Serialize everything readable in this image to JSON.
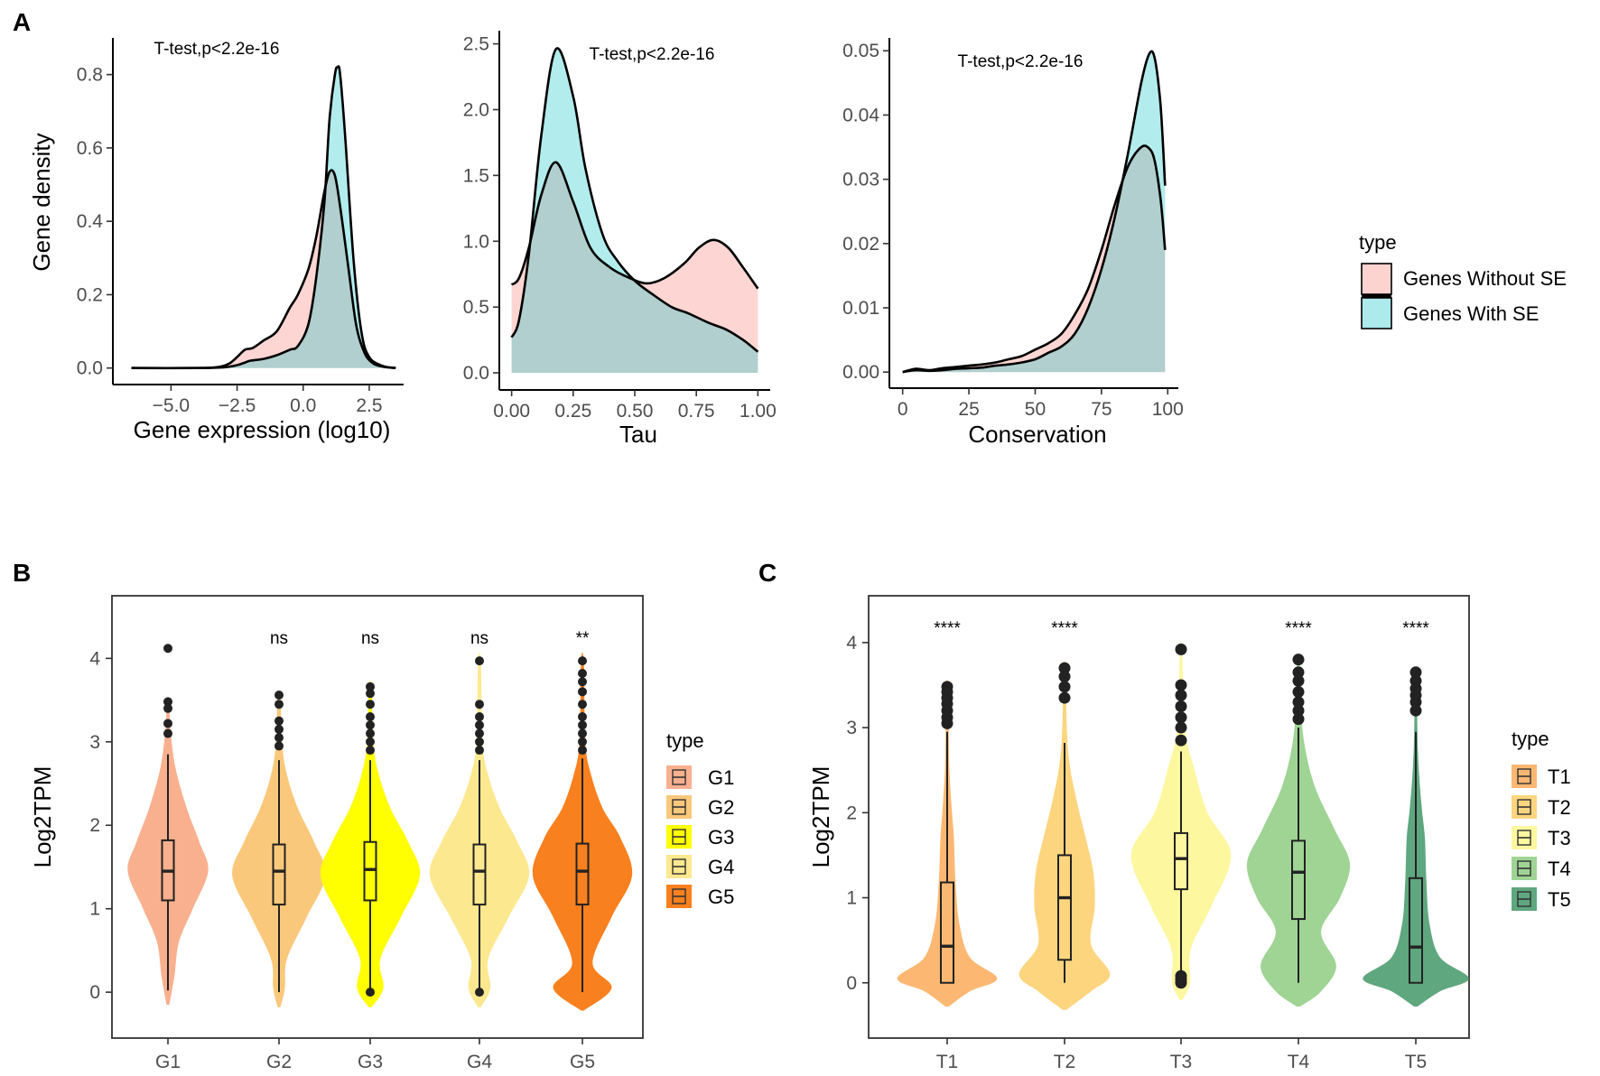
{
  "figure": {
    "panel_labels": {
      "a": "A",
      "b": "B",
      "c": "C"
    }
  },
  "chart_data": [
    {
      "id": "A1",
      "type": "area",
      "title": "",
      "annotation": "T-test,p<2.2e-16",
      "xlabel": "Gene expression (log10)",
      "ylabel": "Gene density",
      "xlim": [
        -7.2,
        3.8
      ],
      "ylim": [
        -0.045,
        0.9
      ],
      "xticks": [
        -5.0,
        -2.5,
        0.0,
        2.5
      ],
      "xtick_labels": [
        "−5.0",
        "−2.5",
        "0.0",
        "2.5"
      ],
      "yticks": [
        0.0,
        0.2,
        0.4,
        0.6,
        0.8
      ],
      "ytick_labels": [
        "0.0",
        "0.2",
        "0.4",
        "0.6",
        "0.8"
      ],
      "series": [
        {
          "name": "Genes Without SE",
          "color": "#F8766D",
          "x": [
            -6.5,
            -4,
            -3.2,
            -2.8,
            -2.5,
            -2.2,
            -1.9,
            -1.5,
            -1,
            -0.5,
            -0.2,
            0.2,
            0.5,
            0.8,
            1,
            1.2,
            1.4,
            1.7,
            2,
            2.3,
            2.6,
            3,
            3.5
          ],
          "y": [
            0,
            0,
            0.003,
            0.012,
            0.03,
            0.05,
            0.055,
            0.075,
            0.1,
            0.165,
            0.2,
            0.27,
            0.36,
            0.48,
            0.535,
            0.525,
            0.44,
            0.28,
            0.12,
            0.045,
            0.015,
            0.004,
            0
          ]
        },
        {
          "name": "Genes With SE",
          "color": "#00BFC4",
          "x": [
            -6.5,
            -4,
            -3,
            -2.5,
            -2.2,
            -2,
            -1.5,
            -1,
            -0.5,
            -0.2,
            0.2,
            0.5,
            0.8,
            1,
            1.2,
            1.3,
            1.4,
            1.6,
            1.9,
            2.2,
            2.5,
            3,
            3.5
          ],
          "y": [
            0,
            0,
            0.002,
            0.008,
            0.015,
            0.02,
            0.025,
            0.035,
            0.05,
            0.06,
            0.12,
            0.25,
            0.45,
            0.68,
            0.8,
            0.82,
            0.8,
            0.62,
            0.3,
            0.1,
            0.03,
            0.006,
            0
          ]
        }
      ]
    },
    {
      "id": "A2",
      "type": "area",
      "title": "",
      "annotation": "T-test,p<2.2e-16",
      "xlabel": "Tau",
      "ylabel": "",
      "xlim": [
        -0.05,
        1.05
      ],
      "ylim": [
        -0.13,
        2.6
      ],
      "xticks": [
        0.0,
        0.25,
        0.5,
        0.75,
        1.0
      ],
      "xtick_labels": [
        "0.00",
        "0.25",
        "0.50",
        "0.75",
        "1.00"
      ],
      "yticks": [
        0.0,
        0.5,
        1.0,
        1.5,
        2.0,
        2.5
      ],
      "ytick_labels": [
        "0.0",
        "0.5",
        "1.0",
        "1.5",
        "2.0",
        "2.5"
      ],
      "series": [
        {
          "name": "Genes Without SE",
          "color": "#F8766D",
          "x": [
            0,
            0.03,
            0.07,
            0.12,
            0.18,
            0.25,
            0.32,
            0.4,
            0.48,
            0.55,
            0.62,
            0.7,
            0.76,
            0.82,
            0.88,
            0.94,
            1
          ],
          "y": [
            0.67,
            0.72,
            0.95,
            1.35,
            1.6,
            1.3,
            0.95,
            0.8,
            0.72,
            0.68,
            0.72,
            0.83,
            0.95,
            1.01,
            0.95,
            0.8,
            0.64
          ]
        },
        {
          "name": "Genes With SE",
          "color": "#00BFC4",
          "x": [
            0,
            0.03,
            0.07,
            0.12,
            0.18,
            0.25,
            0.3,
            0.37,
            0.43,
            0.5,
            0.57,
            0.65,
            0.72,
            0.8,
            0.87,
            0.94,
            1
          ],
          "y": [
            0.27,
            0.4,
            0.9,
            1.8,
            2.46,
            2.1,
            1.55,
            1.05,
            0.85,
            0.7,
            0.6,
            0.5,
            0.45,
            0.38,
            0.33,
            0.25,
            0.16
          ]
        }
      ]
    },
    {
      "id": "A3",
      "type": "area",
      "title": "",
      "annotation": "T-test,p<2.2e-16",
      "xlabel": "Conservation",
      "ylabel": "",
      "xlim": [
        -5,
        104
      ],
      "ylim": [
        -0.0025,
        0.052
      ],
      "xticks": [
        0,
        25,
        50,
        75,
        100
      ],
      "xtick_labels": [
        "0",
        "25",
        "50",
        "75",
        "100"
      ],
      "yticks": [
        0.0,
        0.01,
        0.02,
        0.03,
        0.04,
        0.05
      ],
      "ytick_labels": [
        "0.00",
        "0.01",
        "0.02",
        "0.03",
        "0.04",
        "0.05"
      ],
      "series": [
        {
          "name": "Genes Without SE",
          "color": "#F8766D",
          "x": [
            0,
            5,
            10,
            15,
            20,
            25,
            30,
            35,
            40,
            45,
            50,
            55,
            60,
            65,
            70,
            75,
            80,
            85,
            90,
            93,
            95,
            97,
            98,
            99
          ],
          "y": [
            0,
            0.0005,
            0.0003,
            0.0006,
            0.0008,
            0.001,
            0.0012,
            0.0015,
            0.002,
            0.0025,
            0.0035,
            0.0045,
            0.006,
            0.009,
            0.013,
            0.019,
            0.026,
            0.032,
            0.035,
            0.0348,
            0.033,
            0.028,
            0.024,
            0.019
          ]
        },
        {
          "name": "Genes With SE",
          "color": "#00BFC4",
          "x": [
            0,
            5,
            10,
            15,
            20,
            25,
            30,
            35,
            40,
            45,
            50,
            55,
            60,
            65,
            70,
            75,
            80,
            85,
            90,
            93,
            95,
            97,
            98,
            99
          ],
          "y": [
            0,
            0.0003,
            0.0002,
            0.0003,
            0.0005,
            0.0006,
            0.0007,
            0.001,
            0.0012,
            0.0015,
            0.002,
            0.003,
            0.004,
            0.006,
            0.01,
            0.016,
            0.024,
            0.034,
            0.045,
            0.0495,
            0.049,
            0.043,
            0.037,
            0.029
          ]
        }
      ]
    },
    {
      "id": "B",
      "type": "violin",
      "title": "",
      "xlabel": "",
      "ylabel": "Log2TPM",
      "ylim": [
        -0.55,
        4.75
      ],
      "yticks": [
        0,
        1,
        2,
        3,
        4
      ],
      "ytick_labels": [
        "0",
        "1",
        "2",
        "3",
        "4"
      ],
      "categories": [
        "G1",
        "G2",
        "G3",
        "G4",
        "G5"
      ],
      "significance": [
        "",
        "ns",
        "ns",
        "ns",
        "**"
      ],
      "legend_title": "type",
      "groups": [
        {
          "name": "G1",
          "color": "#F9B08F",
          "q1": 1.1,
          "median": 1.45,
          "q3": 1.82,
          "whisker_low": 0.02,
          "whisker_high": 2.85,
          "outliers": [
            3.1,
            3.22,
            3.4,
            3.48,
            4.12
          ],
          "density_y": [
            -0.15,
            0.2,
            0.6,
            1.0,
            1.45,
            1.8,
            2.2,
            2.7,
            3.2,
            3.5
          ],
          "density_w": [
            0.02,
            0.09,
            0.15,
            0.34,
            0.55,
            0.43,
            0.26,
            0.1,
            0.03,
            0.02
          ]
        },
        {
          "name": "G2",
          "color": "#F9C87A",
          "q1": 1.05,
          "median": 1.45,
          "q3": 1.77,
          "whisker_low": 0.0,
          "whisker_high": 2.78,
          "outliers": [
            2.95,
            3.05,
            3.15,
            3.25,
            3.45,
            3.56
          ],
          "density_y": [
            -0.18,
            0.05,
            0.4,
            0.9,
            1.4,
            1.8,
            2.2,
            2.6,
            3.0,
            3.55
          ],
          "density_w": [
            0.02,
            0.08,
            0.11,
            0.38,
            0.64,
            0.48,
            0.26,
            0.11,
            0.04,
            0.02
          ]
        },
        {
          "name": "G3",
          "color": "#FFFF00",
          "q1": 1.1,
          "median": 1.47,
          "q3": 1.8,
          "whisker_low": 0.0,
          "whisker_high": 2.78,
          "outliers": [
            0.0,
            2.9,
            3.0,
            3.1,
            3.2,
            3.3,
            3.45,
            3.58,
            3.66
          ],
          "density_y": [
            -0.18,
            0.05,
            0.4,
            0.9,
            1.4,
            1.8,
            2.2,
            2.6,
            3.0,
            3.65
          ],
          "density_w": [
            0.02,
            0.18,
            0.14,
            0.42,
            0.68,
            0.52,
            0.28,
            0.12,
            0.04,
            0.02
          ]
        },
        {
          "name": "G4",
          "color": "#FCE88F",
          "q1": 1.05,
          "median": 1.45,
          "q3": 1.77,
          "whisker_low": 0.0,
          "whisker_high": 2.78,
          "outliers": [
            0.0,
            2.9,
            3.0,
            3.1,
            3.2,
            3.3,
            3.45,
            3.97
          ],
          "density_y": [
            -0.18,
            0.05,
            0.4,
            0.9,
            1.4,
            1.8,
            2.2,
            2.6,
            3.0,
            3.95
          ],
          "density_w": [
            0.02,
            0.15,
            0.12,
            0.4,
            0.68,
            0.52,
            0.28,
            0.12,
            0.04,
            0.02
          ]
        },
        {
          "name": "G5",
          "color": "#F9801E",
          "q1": 1.05,
          "median": 1.45,
          "q3": 1.78,
          "whisker_low": 0.0,
          "whisker_high": 2.8,
          "outliers": [
            2.9,
            3.0,
            3.1,
            3.2,
            3.3,
            3.45,
            3.6,
            3.72,
            3.82,
            3.97
          ],
          "density_y": [
            -0.22,
            0.05,
            0.35,
            0.9,
            1.4,
            1.85,
            2.2,
            2.6,
            3.0,
            3.95
          ],
          "density_w": [
            0.02,
            0.4,
            0.14,
            0.4,
            0.68,
            0.52,
            0.28,
            0.12,
            0.04,
            0.02
          ]
        }
      ]
    },
    {
      "id": "C",
      "type": "violin",
      "title": "",
      "xlabel": "",
      "ylabel": "Log2TPM",
      "ylim": [
        -0.65,
        4.55
      ],
      "yticks": [
        0,
        1,
        2,
        3,
        4
      ],
      "ytick_labels": [
        "0",
        "1",
        "2",
        "3",
        "4"
      ],
      "categories": [
        "T1",
        "T2",
        "T3",
        "T4",
        "T5"
      ],
      "significance": [
        "****",
        "****",
        "",
        "****",
        "****"
      ],
      "legend_title": "type",
      "groups": [
        {
          "name": "T1",
          "color": "#FCB872",
          "q1": 0.0,
          "median": 0.43,
          "q3": 1.18,
          "whisker_low": 0.0,
          "whisker_high": 2.95,
          "outliers": [
            3.05,
            3.12,
            3.2,
            3.28,
            3.35,
            3.42,
            3.48
          ],
          "density_y": [
            -0.28,
            -0.1,
            0.05,
            0.3,
            0.7,
            1.2,
            1.7,
            2.05,
            2.5,
            3.0,
            3.5
          ],
          "density_w": [
            0.02,
            0.3,
            0.66,
            0.3,
            0.16,
            0.11,
            0.09,
            0.06,
            0.03,
            0.02,
            0.015
          ]
        },
        {
          "name": "T2",
          "color": "#FCD57E",
          "q1": 0.27,
          "median": 1.0,
          "q3": 1.5,
          "whisker_low": 0.0,
          "whisker_high": 2.82,
          "outliers": [
            3.35,
            3.48,
            3.6,
            3.7
          ],
          "density_y": [
            -0.32,
            -0.1,
            0.1,
            0.45,
            0.9,
            1.3,
            1.7,
            2.1,
            2.55,
            3.0,
            3.7
          ],
          "density_w": [
            0.02,
            0.35,
            0.6,
            0.35,
            0.4,
            0.38,
            0.28,
            0.17,
            0.07,
            0.03,
            0.015
          ]
        },
        {
          "name": "T3",
          "color": "#FDF7A0",
          "q1": 1.1,
          "median": 1.46,
          "q3": 1.76,
          "whisker_low": 0.12,
          "whisker_high": 2.72,
          "outliers": [
            0.0,
            0.04,
            0.08,
            2.85,
            3.0,
            3.12,
            3.25,
            3.38,
            3.5,
            3.92
          ],
          "density_y": [
            -0.2,
            0.0,
            0.4,
            0.9,
            1.5,
            2.0,
            2.5,
            3.0,
            3.9
          ],
          "density_w": [
            0.02,
            0.12,
            0.13,
            0.4,
            0.66,
            0.35,
            0.18,
            0.05,
            0.015
          ]
        },
        {
          "name": "T4",
          "color": "#9FD494",
          "q1": 0.75,
          "median": 1.3,
          "q3": 1.67,
          "whisker_low": 0.0,
          "whisker_high": 3.0,
          "outliers": [
            3.1,
            3.2,
            3.3,
            3.42,
            3.55,
            3.65,
            3.8
          ],
          "density_y": [
            -0.28,
            -0.1,
            0.2,
            0.6,
            1.0,
            1.4,
            1.8,
            2.3,
            2.8,
            3.3,
            3.8
          ],
          "density_w": [
            0.02,
            0.3,
            0.5,
            0.3,
            0.55,
            0.68,
            0.48,
            0.22,
            0.08,
            0.03,
            0.015
          ]
        },
        {
          "name": "T5",
          "color": "#5FA77F",
          "q1": 0.0,
          "median": 0.42,
          "q3": 1.23,
          "whisker_low": 0.0,
          "whisker_high": 2.95,
          "outliers": [
            3.2,
            3.3,
            3.38,
            3.46,
            3.55,
            3.65
          ],
          "density_y": [
            -0.28,
            -0.1,
            0.05,
            0.3,
            0.7,
            1.2,
            1.7,
            2.05,
            2.5,
            3.0,
            3.6
          ],
          "density_w": [
            0.02,
            0.32,
            0.7,
            0.32,
            0.18,
            0.14,
            0.12,
            0.08,
            0.04,
            0.02,
            0.015
          ]
        }
      ]
    }
  ],
  "legend_a": {
    "title": "type",
    "items": [
      {
        "label": "Genes Without SE",
        "color": "#F8766D"
      },
      {
        "label": "Genes With SE",
        "color": "#00BFC4"
      }
    ]
  }
}
